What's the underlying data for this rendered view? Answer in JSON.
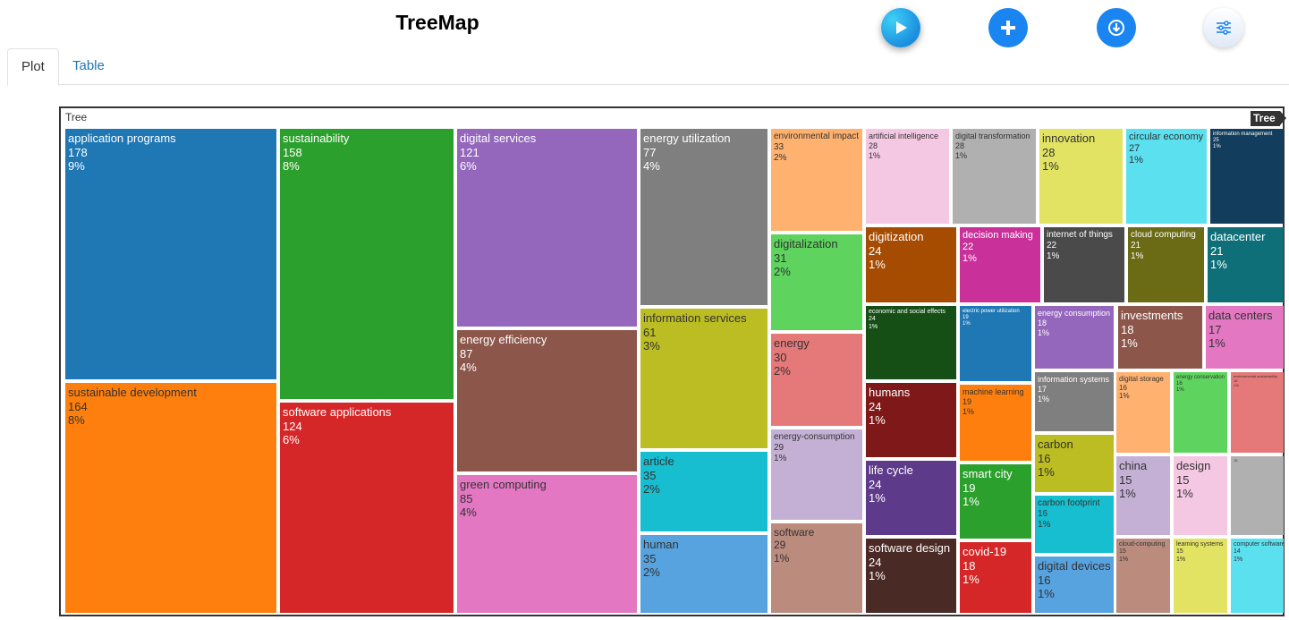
{
  "header": {
    "title": "TreeMap",
    "buttons": [
      {
        "name": "play-button",
        "icon": "play-icon"
      },
      {
        "name": "add-button",
        "icon": "plus-icon"
      },
      {
        "name": "download-button",
        "icon": "download-icon"
      },
      {
        "name": "settings-button",
        "icon": "sliders-icon"
      }
    ]
  },
  "tabs": [
    {
      "label": "Plot",
      "active": true
    },
    {
      "label": "Table",
      "active": false
    }
  ],
  "chart_data": {
    "type": "treemap",
    "root_label": "Tree",
    "pathbar_label": "Tree",
    "items": [
      {
        "label": "application programs",
        "value": 178,
        "pct": "9%",
        "color": "#1f77b4"
      },
      {
        "label": "sustainable development",
        "value": 164,
        "pct": "8%",
        "color": "#ff7f0e"
      },
      {
        "label": "sustainability",
        "value": 158,
        "pct": "8%",
        "color": "#2ca02c"
      },
      {
        "label": "software applications",
        "value": 124,
        "pct": "6%",
        "color": "#d62728"
      },
      {
        "label": "digital services",
        "value": 121,
        "pct": "6%",
        "color": "#9467bd"
      },
      {
        "label": "energy efficiency",
        "value": 87,
        "pct": "4%",
        "color": "#8c564b"
      },
      {
        "label": "green computing",
        "value": 85,
        "pct": "4%",
        "color": "#e377c2"
      },
      {
        "label": "energy utilization",
        "value": 77,
        "pct": "4%",
        "color": "#7f7f7f"
      },
      {
        "label": "information services",
        "value": 61,
        "pct": "3%",
        "color": "#bcbd22"
      },
      {
        "label": "article",
        "value": 35,
        "pct": "2%",
        "color": "#17becf"
      },
      {
        "label": "human",
        "value": 35,
        "pct": "2%",
        "color": "#57a3e0"
      },
      {
        "label": "environmental impact",
        "value": 33,
        "pct": "2%",
        "color": "#ffb270"
      },
      {
        "label": "digitalization",
        "value": 31,
        "pct": "2%",
        "color": "#5ed45e"
      },
      {
        "label": "energy",
        "value": 30,
        "pct": "2%",
        "color": "#e57878"
      },
      {
        "label": "energy-consumption",
        "value": 29,
        "pct": "1%",
        "color": "#c5b0d5"
      },
      {
        "label": "software",
        "value": 29,
        "pct": "1%",
        "color": "#bb8b7e"
      },
      {
        "label": "artificial intelligence",
        "value": 28,
        "pct": "1%",
        "color": "#f4c8e3"
      },
      {
        "label": "digital transformation",
        "value": 28,
        "pct": "1%",
        "color": "#b0b0b0"
      },
      {
        "label": "innovation",
        "value": 28,
        "pct": "1%",
        "color": "#e3e363"
      },
      {
        "label": "circular economy",
        "value": 27,
        "pct": "1%",
        "color": "#5ae0ef"
      },
      {
        "label": "information management",
        "value": 25,
        "pct": "1%",
        "color": "#123d5c"
      },
      {
        "label": "digitization",
        "value": 24,
        "pct": "1%",
        "color": "#a54c00"
      },
      {
        "label": "decision making",
        "value": 22,
        "pct": "1%",
        "color": "#c93099"
      },
      {
        "label": "internet of things",
        "value": 22,
        "pct": "1%",
        "color": "#4a4a4a"
      },
      {
        "label": "cloud computing",
        "value": 21,
        "pct": "1%",
        "color": "#6b6b15"
      },
      {
        "label": "datacenter",
        "value": 21,
        "pct": "1%",
        "color": "#0f6f78"
      },
      {
        "label": "economic and social effects",
        "value": 24,
        "pct": "1%",
        "color": "#164f16"
      },
      {
        "label": "electric power utilization",
        "value": 19,
        "pct": "1%",
        "color": "#1f77b4"
      },
      {
        "label": "energy consumption",
        "value": 18,
        "pct": "1%",
        "color": "#9467bd"
      },
      {
        "label": "investments",
        "value": 18,
        "pct": "1%",
        "color": "#8c564b"
      },
      {
        "label": "data centers",
        "value": 17,
        "pct": "1%",
        "color": "#e377c2"
      },
      {
        "label": "humans",
        "value": 24,
        "pct": "1%",
        "color": "#7f1818"
      },
      {
        "label": "machine learning",
        "value": 19,
        "pct": "1%",
        "color": "#ff7f0e"
      },
      {
        "label": "information systems",
        "value": 17,
        "pct": "1%",
        "color": "#7f7f7f"
      },
      {
        "label": "digital storage",
        "value": 16,
        "pct": "1%",
        "color": "#ffb270"
      },
      {
        "label": "energy conservation",
        "value": 16,
        "pct": "1%",
        "color": "#5ed45e"
      },
      {
        "label": "environmental sustainability",
        "value": 16,
        "pct": "1%",
        "color": "#e57878"
      },
      {
        "label": "life cycle",
        "value": 24,
        "pct": "1%",
        "color": "#5e3a8a"
      },
      {
        "label": "smart city",
        "value": 19,
        "pct": "1%",
        "color": "#2ca02c"
      },
      {
        "label": "carbon",
        "value": 16,
        "pct": "1%",
        "color": "#bcbd22"
      },
      {
        "label": "china",
        "value": 15,
        "pct": "1%",
        "color": "#c5b0d5"
      },
      {
        "label": "design",
        "value": 15,
        "pct": "1%",
        "color": "#f4c8e3"
      },
      {
        "label": "",
        "value": 15,
        "pct": "",
        "color": "#b0b0b0"
      },
      {
        "label": "carbon footprint",
        "value": 16,
        "pct": "1%",
        "color": "#17becf"
      },
      {
        "label": "software design",
        "value": 24,
        "pct": "1%",
        "color": "#4a2a25"
      },
      {
        "label": "covid-19",
        "value": 18,
        "pct": "1%",
        "color": "#d62728"
      },
      {
        "label": "digital devices",
        "value": 16,
        "pct": "1%",
        "color": "#57a3e0"
      },
      {
        "label": "cloud-computing",
        "value": 15,
        "pct": "1%",
        "color": "#bb8b7e"
      },
      {
        "label": "learning systems",
        "value": 15,
        "pct": "1%",
        "color": "#e3e363"
      },
      {
        "label": "computer software",
        "value": 14,
        "pct": "1%",
        "color": "#5ae0ef"
      }
    ]
  }
}
